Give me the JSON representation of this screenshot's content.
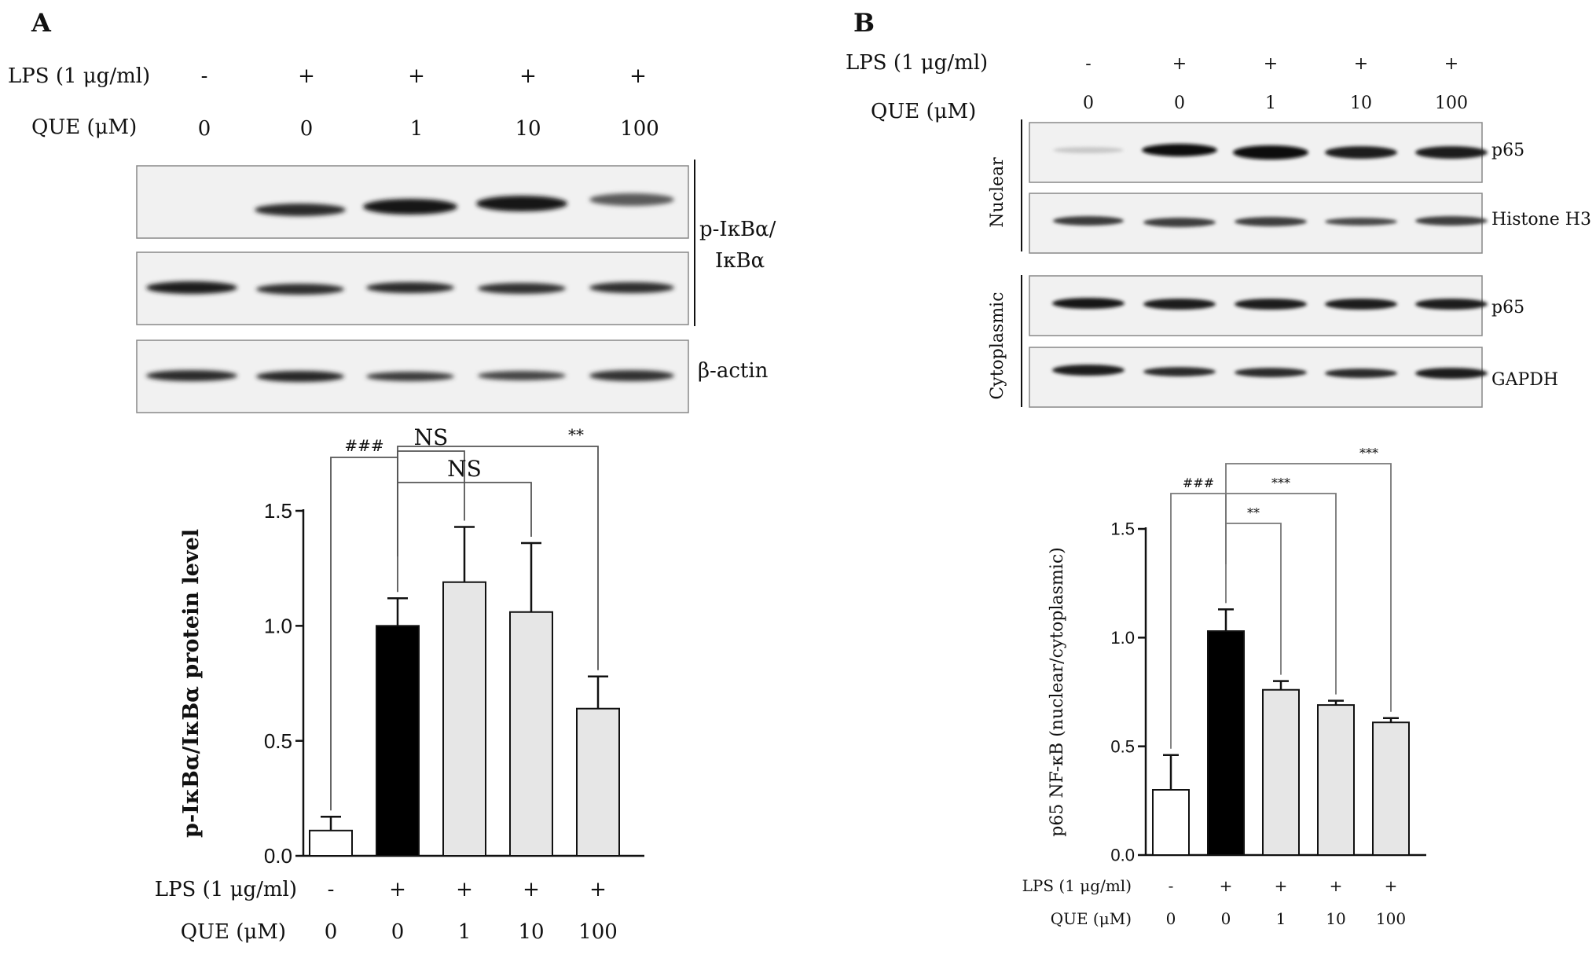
{
  "figure": {
    "panelA": {
      "label": "A",
      "blot": {
        "lps_label": "LPS (1 μg/ml)",
        "que_label": "QUE (μM)",
        "lps_values": [
          "-",
          "+",
          "+",
          "+",
          "+"
        ],
        "que_values": [
          "0",
          "0",
          "1",
          "10",
          "100"
        ],
        "band_labels": {
          "pikb_line1": "p-IκBα/",
          "pikb_line2": "IκBα",
          "actin": "β-actin"
        }
      }
    },
    "panelB": {
      "label": "B",
      "blot": {
        "lps_label": "LPS (1 μg/ml)",
        "que_label": "QUE (μM)",
        "lps_values": [
          "-",
          "+",
          "+",
          "+",
          "+"
        ],
        "que_values": [
          "0",
          "0",
          "1",
          "10",
          "100"
        ],
        "fractions": {
          "nuclear": "Nuclear",
          "cytoplasmic": "Cytoplasmic"
        },
        "band_labels": {
          "p65_nuc": "p65",
          "histone": "Histone H3",
          "p65_cyto": "p65",
          "gapdh": "GAPDH"
        }
      }
    }
  },
  "chart_data": [
    {
      "type": "bar",
      "panel": "A",
      "categories": [
        "1",
        "2",
        "3",
        "4",
        "5"
      ],
      "lps_label": "LPS (1 μg/ml)",
      "que_label": "QUE (μM)",
      "lps_values": [
        "-",
        "+",
        "+",
        "+",
        "+"
      ],
      "que_values": [
        "0",
        "0",
        "1",
        "10",
        "100"
      ],
      "values": [
        0.11,
        1.0,
        1.19,
        1.06,
        0.64
      ],
      "errors": [
        0.06,
        0.12,
        0.24,
        0.3,
        0.14
      ],
      "fills": [
        "#ffffff",
        "#000000",
        "#e6e6e6",
        "#e6e6e6",
        "#e6e6e6"
      ],
      "ylabel": "p-IκBα/IκBα protein level",
      "ylim": [
        0,
        1.5
      ],
      "yticks": [
        "0.0",
        "0.5",
        "1.0",
        "1.5"
      ],
      "yticks_values": [
        0,
        0.5,
        1.0,
        1.5
      ],
      "significance": [
        {
          "from": 0,
          "to": 1,
          "label": "###"
        },
        {
          "from": 1,
          "to": 2,
          "label": "NS"
        },
        {
          "from": 1,
          "to": 3,
          "label": "NS"
        },
        {
          "from": 1,
          "to": 4,
          "label": "**"
        }
      ]
    },
    {
      "type": "bar",
      "panel": "B",
      "categories": [
        "1",
        "2",
        "3",
        "4",
        "5"
      ],
      "lps_label": "LPS (1 μg/ml)",
      "que_label": "QUE (μM)",
      "lps_values": [
        "-",
        "+",
        "+",
        "+",
        "+"
      ],
      "que_values": [
        "0",
        "0",
        "1",
        "10",
        "100"
      ],
      "values": [
        0.3,
        1.03,
        0.76,
        0.69,
        0.61
      ],
      "errors": [
        0.16,
        0.1,
        0.04,
        0.02,
        0.02
      ],
      "fills": [
        "#ffffff",
        "#000000",
        "#e6e6e6",
        "#e6e6e6",
        "#e6e6e6"
      ],
      "ylabel": "p65 NF-κB (nuclear/cytoplasmic)",
      "ylim": [
        0,
        1.5
      ],
      "yticks": [
        "0.0",
        "0.5",
        "1.0",
        "1.5"
      ],
      "yticks_values": [
        0,
        0.5,
        1.0,
        1.5
      ],
      "significance": [
        {
          "from": 0,
          "to": 1,
          "label": "###"
        },
        {
          "from": 1,
          "to": 2,
          "label": "**"
        },
        {
          "from": 1,
          "to": 3,
          "label": "***"
        },
        {
          "from": 1,
          "to": 4,
          "label": "***"
        }
      ]
    }
  ]
}
